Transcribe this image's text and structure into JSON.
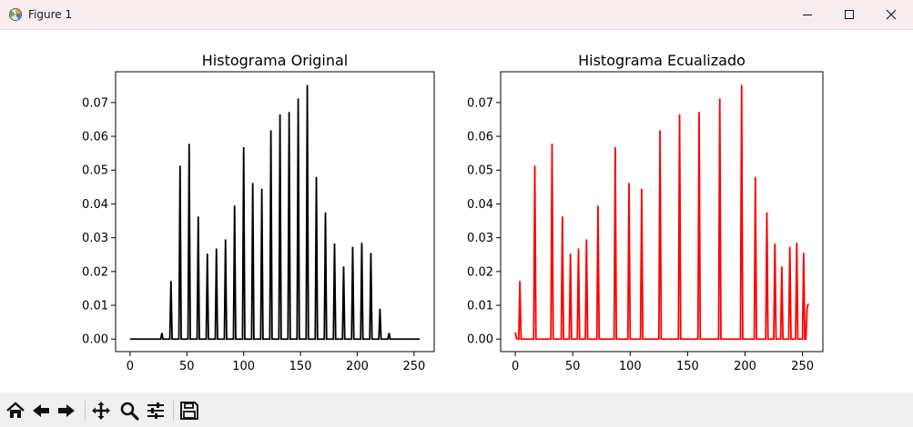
{
  "window": {
    "title": "Figure 1",
    "controls": [
      "minimize-icon",
      "maximize-icon",
      "close-icon"
    ]
  },
  "toolbar": {
    "buttons": [
      {
        "name": "home-icon"
      },
      {
        "name": "back-icon"
      },
      {
        "name": "forward-icon"
      },
      {
        "name": "pan-icon"
      },
      {
        "name": "zoom-icon"
      },
      {
        "name": "configure-subplots-icon"
      },
      {
        "name": "save-icon"
      }
    ]
  },
  "chart_data": [
    {
      "type": "line",
      "title": "Histograma Original",
      "xlabel": "",
      "ylabel": "",
      "xlim": [
        -12.75,
        267.75
      ],
      "ylim": [
        -0.0037,
        0.0791
      ],
      "xticks": [
        0,
        50,
        100,
        150,
        200,
        250
      ],
      "yticks": [
        0.0,
        0.01,
        0.02,
        0.03,
        0.04,
        0.05,
        0.06,
        0.07
      ],
      "ytick_labels": [
        "0.00",
        "0.01",
        "0.02",
        "0.03",
        "0.04",
        "0.05",
        "0.06",
        "0.07"
      ],
      "color": "#000000",
      "x_range": [
        0,
        255
      ],
      "baseline": 0,
      "peaks": [
        {
          "x": 28,
          "y": 0.0018
        },
        {
          "x": 36,
          "y": 0.0172
        },
        {
          "x": 44,
          "y": 0.0513
        },
        {
          "x": 52,
          "y": 0.0578
        },
        {
          "x": 60,
          "y": 0.0363
        },
        {
          "x": 68,
          "y": 0.0253
        },
        {
          "x": 76,
          "y": 0.0268
        },
        {
          "x": 84,
          "y": 0.0295
        },
        {
          "x": 92,
          "y": 0.0395
        },
        {
          "x": 100,
          "y": 0.0568
        },
        {
          "x": 108,
          "y": 0.0462
        },
        {
          "x": 116,
          "y": 0.0445
        },
        {
          "x": 124,
          "y": 0.0618
        },
        {
          "x": 132,
          "y": 0.0665
        },
        {
          "x": 140,
          "y": 0.0672
        },
        {
          "x": 148,
          "y": 0.0712
        },
        {
          "x": 156,
          "y": 0.0752
        },
        {
          "x": 164,
          "y": 0.048
        },
        {
          "x": 172,
          "y": 0.0375
        },
        {
          "x": 180,
          "y": 0.0283
        },
        {
          "x": 188,
          "y": 0.0215
        },
        {
          "x": 196,
          "y": 0.0273
        },
        {
          "x": 204,
          "y": 0.0285
        },
        {
          "x": 212,
          "y": 0.0255
        },
        {
          "x": 220,
          "y": 0.009
        },
        {
          "x": 228,
          "y": 0.0018
        }
      ]
    },
    {
      "type": "line",
      "title": "Histograma Ecualizado",
      "xlabel": "",
      "ylabel": "",
      "xlim": [
        -12.75,
        267.75
      ],
      "ylim": [
        -0.0037,
        0.0791
      ],
      "xticks": [
        0,
        50,
        100,
        150,
        200,
        250
      ],
      "yticks": [
        0.0,
        0.01,
        0.02,
        0.03,
        0.04,
        0.05,
        0.06,
        0.07
      ],
      "ytick_labels": [
        "0.00",
        "0.01",
        "0.02",
        "0.03",
        "0.04",
        "0.05",
        "0.06",
        "0.07"
      ],
      "color": "#ff0000",
      "x_range": [
        0,
        255
      ],
      "baseline": 0,
      "points": [
        [
          0,
          0.002
        ],
        [
          1,
          0.0002
        ],
        [
          2,
          0.0
        ],
        [
          3,
          0.0
        ],
        [
          4,
          0.0172
        ],
        [
          5,
          0.0
        ],
        [
          16,
          0.0
        ],
        [
          17,
          0.0513
        ],
        [
          18,
          0.0
        ],
        [
          31,
          0.0
        ],
        [
          32,
          0.0578
        ],
        [
          33,
          0.0
        ],
        [
          40,
          0.0
        ],
        [
          41,
          0.0363
        ],
        [
          42,
          0.0
        ],
        [
          47,
          0.0
        ],
        [
          48,
          0.0253
        ],
        [
          49,
          0.0
        ],
        [
          54,
          0.0
        ],
        [
          55,
          0.0268
        ],
        [
          56,
          0.0
        ],
        [
          61,
          0.0
        ],
        [
          62,
          0.0295
        ],
        [
          63,
          0.0
        ],
        [
          71,
          0.0
        ],
        [
          72,
          0.0395
        ],
        [
          73,
          0.0
        ],
        [
          86,
          0.0
        ],
        [
          87,
          0.0568
        ],
        [
          88,
          0.0
        ],
        [
          98,
          0.0
        ],
        [
          99,
          0.0462
        ],
        [
          100,
          0.0
        ],
        [
          109,
          0.0
        ],
        [
          110,
          0.0445
        ],
        [
          111,
          0.0
        ],
        [
          125,
          0.0
        ],
        [
          126,
          0.0618
        ],
        [
          127,
          0.0
        ],
        [
          142,
          0.0
        ],
        [
          143,
          0.0665
        ],
        [
          144,
          0.0
        ],
        [
          159,
          0.0
        ],
        [
          160,
          0.0672
        ],
        [
          161,
          0.0
        ],
        [
          177,
          0.0
        ],
        [
          178,
          0.0712
        ],
        [
          179,
          0.0
        ],
        [
          196,
          0.0
        ],
        [
          197,
          0.0752
        ],
        [
          198,
          0.0
        ],
        [
          208,
          0.0
        ],
        [
          209,
          0.048
        ],
        [
          210,
          0.0
        ],
        [
          218,
          0.0
        ],
        [
          219,
          0.0375
        ],
        [
          220,
          0.0
        ],
        [
          225,
          0.0
        ],
        [
          226,
          0.0283
        ],
        [
          227,
          0.0
        ],
        [
          231,
          0.0
        ],
        [
          232,
          0.0215
        ],
        [
          233,
          0.0
        ],
        [
          238,
          0.0
        ],
        [
          239,
          0.0273
        ],
        [
          240,
          0.0
        ],
        [
          244,
          0.0
        ],
        [
          245,
          0.0285
        ],
        [
          246,
          0.0
        ],
        [
          250,
          0.0
        ],
        [
          251,
          0.0255
        ],
        [
          252,
          0.0
        ],
        [
          253,
          0.0
        ],
        [
          254,
          0.009
        ],
        [
          255,
          0.0105
        ]
      ]
    }
  ]
}
